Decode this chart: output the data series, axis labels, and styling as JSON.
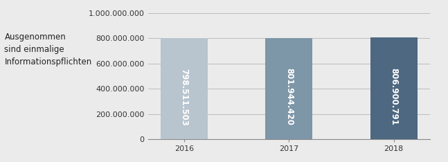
{
  "categories": [
    "2016",
    "2017",
    "2018"
  ],
  "values": [
    798511503,
    801944420,
    806900791
  ],
  "labels": [
    "798.511.503",
    "801.944.420",
    "806.900.791"
  ],
  "bar_colors": [
    "#b8c4ce",
    "#7d96a8",
    "#4d6880"
  ],
  "background_color": "#ebebeb",
  "ylim": [
    0,
    1000000000
  ],
  "yticks": [
    0,
    200000000,
    400000000,
    600000000,
    800000000,
    1000000000
  ],
  "ytick_labels": [
    "0",
    "200.000.000",
    "400.000.000",
    "600.000.000",
    "800.000.000",
    "1.000.000.000"
  ],
  "annotation_text": "Ausgenommen\nsind einmalige\nInformationspflichten",
  "annotation_fontsize": 8.5,
  "bar_label_fontsize": 8.5,
  "tick_fontsize": 8,
  "bar_width": 0.45,
  "figsize": [
    6.47,
    2.34
  ],
  "dpi": 100
}
